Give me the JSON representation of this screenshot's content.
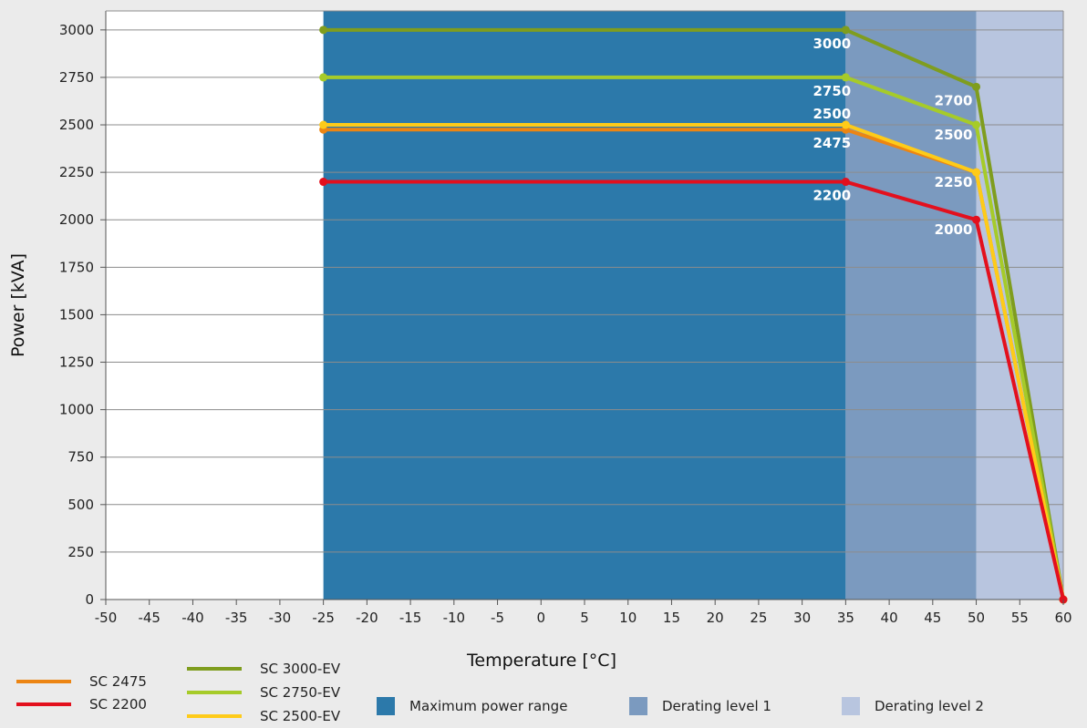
{
  "chart_data": {
    "type": "line",
    "xlabel": "Temperature [°C]",
    "ylabel": "Power [kVA]",
    "xlim": [
      -50,
      60
    ],
    "ylim": [
      0,
      3100
    ],
    "x_ticks": [
      -50,
      -45,
      -40,
      -35,
      -30,
      -25,
      -20,
      -15,
      -10,
      -5,
      0,
      5,
      10,
      15,
      20,
      25,
      30,
      35,
      40,
      45,
      50,
      55,
      60
    ],
    "y_ticks": [
      0,
      250,
      500,
      750,
      1000,
      1250,
      1500,
      1750,
      2000,
      2250,
      2500,
      2750,
      3000
    ],
    "grid": "horizontal",
    "regions": [
      {
        "name": "Maximum power range",
        "x": [
          -25,
          35
        ],
        "color": "#2c79aa"
      },
      {
        "name": "Derating level 1",
        "x": [
          35,
          50
        ],
        "color": "#7b9abf"
      },
      {
        "name": "Derating level 2",
        "x": [
          50,
          60
        ],
        "color": "#b8c5df"
      }
    ],
    "series": [
      {
        "name": "SC 3000-EV",
        "color": "#7f9d1e",
        "x": [
          -25,
          35,
          50,
          60
        ],
        "y": [
          3000,
          3000,
          2700,
          0
        ]
      },
      {
        "name": "SC 2750-EV",
        "color": "#a6cb29",
        "x": [
          -25,
          35,
          50,
          60
        ],
        "y": [
          2750,
          2750,
          2500,
          0
        ]
      },
      {
        "name": "SC 2475",
        "color": "#ec8513",
        "x": [
          -25,
          35,
          50,
          60
        ],
        "y": [
          2475,
          2475,
          2250,
          0
        ]
      },
      {
        "name": "SC 2500-EV",
        "color": "#fecb19",
        "x": [
          -25,
          35,
          50,
          60
        ],
        "y": [
          2500,
          2500,
          2250,
          0
        ]
      },
      {
        "name": "SC 2200",
        "color": "#e3101d",
        "x": [
          -25,
          35,
          50,
          60
        ],
        "y": [
          2200,
          2200,
          2000,
          0
        ]
      }
    ],
    "annotations": [
      {
        "text": "3000",
        "x": 35,
        "y": 3000
      },
      {
        "text": "2750",
        "x": 35,
        "y": 2750
      },
      {
        "text": "2500",
        "x": 35,
        "y": 2500
      },
      {
        "text": "2475",
        "x": 35,
        "y": 2475
      },
      {
        "text": "2200",
        "x": 35,
        "y": 2200
      },
      {
        "text": "2700",
        "x": 50,
        "y": 2700
      },
      {
        "text": "2500",
        "x": 50,
        "y": 2500
      },
      {
        "text": "2250",
        "x": 50,
        "y": 2250
      },
      {
        "text": "2000",
        "x": 50,
        "y": 2000
      }
    ],
    "legend": {
      "placement": "bottom",
      "lines": [
        "SC 2475",
        "SC 2200",
        "SC 3000-EV",
        "SC 2750-EV",
        "SC 2500-EV"
      ],
      "areas": [
        "Maximum power range",
        "Derating level 1",
        "Derating level 2"
      ]
    }
  }
}
